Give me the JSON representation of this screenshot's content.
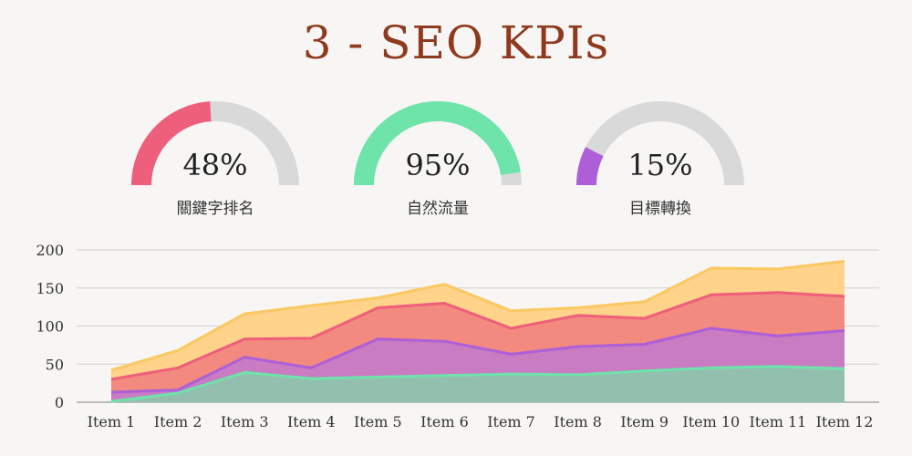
{
  "title": "3 - SEO KPIs",
  "gauges": [
    {
      "value": "48%",
      "fraction": 0.48,
      "label": "關鍵字排名",
      "color": "#ee5f7b",
      "track": "#d9d9d9"
    },
    {
      "value": "95%",
      "fraction": 0.95,
      "label": "自然流量",
      "color": "#6ee3aa",
      "track": "#d9d9d9"
    },
    {
      "value": "15%",
      "fraction": 0.15,
      "label": "目標轉換",
      "color": "#ad5fd8",
      "track": "#d9d9d9"
    }
  ],
  "chart_data": {
    "type": "area",
    "categories": [
      "Item 1",
      "Item 2",
      "Item 3",
      "Item 4",
      "Item 5",
      "Item 6",
      "Item 7",
      "Item 8",
      "Item 9",
      "Item 10",
      "Item 11",
      "Item 12"
    ],
    "ylim": [
      0,
      200
    ],
    "yticks": [
      "0",
      "50",
      "100",
      "150",
      "200"
    ],
    "grid": true,
    "series": [
      {
        "color": "#ffd38a",
        "line": "#fbc862",
        "values": [
          42,
          68,
          116,
          127,
          137,
          155,
          120,
          124,
          132,
          176,
          175,
          185
        ]
      },
      {
        "color": "#f28a80",
        "line": "#ee5f7b",
        "values": [
          30,
          45,
          83,
          84,
          124,
          130,
          97,
          114,
          110,
          141,
          144,
          139
        ]
      },
      {
        "color": "#c97cc2",
        "line": "#ad5fd8",
        "values": [
          13,
          16,
          59,
          45,
          83,
          80,
          63,
          73,
          76,
          97,
          87,
          94
        ]
      },
      {
        "color": "#93bfae",
        "line": "#6ee3aa",
        "values": [
          1,
          12,
          39,
          31,
          33,
          35,
          37,
          36,
          41,
          45,
          47,
          44
        ]
      }
    ]
  }
}
